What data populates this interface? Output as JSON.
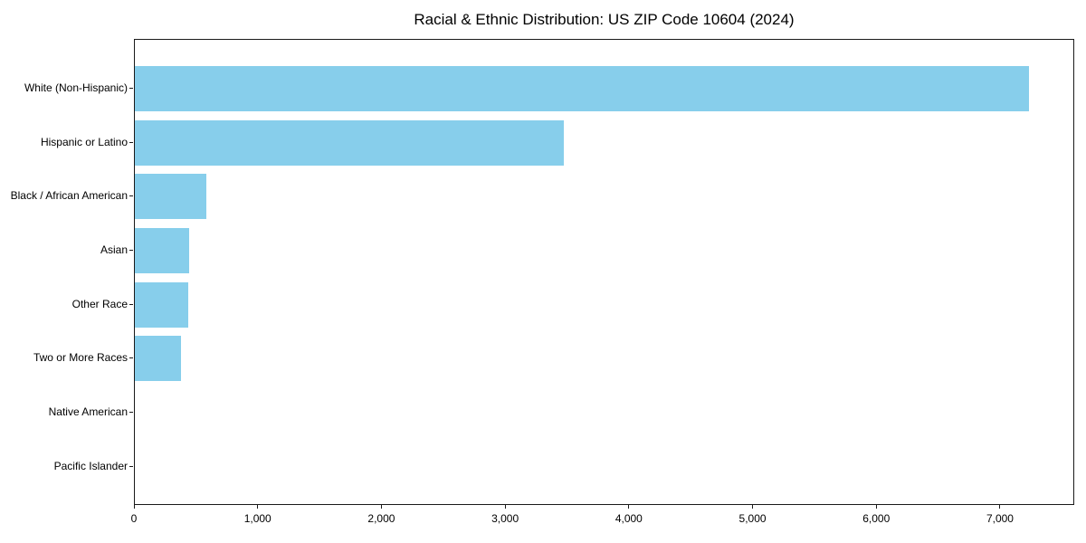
{
  "chart_data": {
    "type": "bar",
    "orientation": "horizontal",
    "title": "Racial & Ethnic Distribution: US ZIP Code 10604 (2024)",
    "categories": [
      "White (Non-Hispanic)",
      "Hispanic or Latino",
      "Black / African American",
      "Asian",
      "Other Race",
      "Two or More Races",
      "Native American",
      "Pacific Islander"
    ],
    "values": [
      7230,
      3470,
      580,
      440,
      430,
      375,
      0,
      0
    ],
    "xlabel": "",
    "ylabel": "",
    "xlim": [
      0,
      7600
    ],
    "x_ticks": [
      0,
      1000,
      2000,
      3000,
      4000,
      5000,
      6000,
      7000
    ],
    "x_tick_labels": [
      "0",
      "1,000",
      "2,000",
      "3,000",
      "4,000",
      "5,000",
      "6,000",
      "7,000"
    ],
    "bar_color": "#87CEEB",
    "axis_color": "#1a1a1a",
    "grid": false,
    "legend": null
  }
}
